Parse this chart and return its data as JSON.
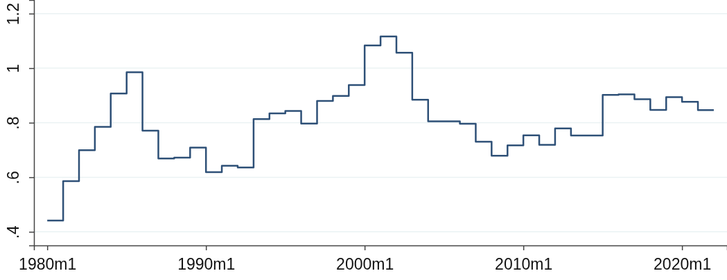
{
  "chart_data": {
    "type": "step",
    "x": [
      "1980-01",
      "1981-01",
      "1982-01",
      "1983-01",
      "1984-01",
      "1985-01",
      "1986-01",
      "1987-01",
      "1988-01",
      "1989-01",
      "1990-01",
      "1991-01",
      "1992-01",
      "1993-01",
      "1994-01",
      "1995-01",
      "1996-01",
      "1997-01",
      "1998-01",
      "1999-01",
      "2000-01",
      "2001-01",
      "2002-01",
      "2003-01",
      "2004-01",
      "2005-01",
      "2006-01",
      "2007-01",
      "2008-01",
      "2009-01",
      "2010-01",
      "2011-01",
      "2012-01",
      "2013-01",
      "2014-01",
      "2015-01",
      "2016-01",
      "2017-01",
      "2018-01",
      "2019-01",
      "2020-01",
      "2021-01",
      "2022-01"
    ],
    "series": [
      {
        "color": "#2e5077",
        "values": [
          0.441,
          0.586,
          0.699,
          0.785,
          0.907,
          0.985,
          0.771,
          0.669,
          0.672,
          0.709,
          0.619,
          0.642,
          0.636,
          0.813,
          0.834,
          0.843,
          0.797,
          0.88,
          0.898,
          0.938,
          1.083,
          1.116,
          1.057,
          0.884,
          0.805,
          0.805,
          0.796,
          0.73,
          0.679,
          0.717,
          0.754,
          0.719,
          0.779,
          0.753,
          0.753,
          0.902,
          0.904,
          0.886,
          0.847,
          0.894,
          0.877,
          0.846,
          0.846
        ]
      }
    ],
    "xlim": [
      "1979-03",
      "2022-11"
    ],
    "ylim": [
      0.35,
      1.25
    ],
    "xticks": [
      {
        "value": "1980-01",
        "label": "1980m1"
      },
      {
        "value": "1990-01",
        "label": "1990m1"
      },
      {
        "value": "2000-01",
        "label": "2000m1"
      },
      {
        "value": "2010-01",
        "label": "2010m1"
      },
      {
        "value": "2020-01",
        "label": "2020m1"
      }
    ],
    "yticks": [
      {
        "value": 0.4,
        "label": ".4"
      },
      {
        "value": 0.6,
        "label": ".6"
      },
      {
        "value": 0.8,
        "label": ".8"
      },
      {
        "value": 1,
        "label": "1"
      },
      {
        "value": 1.2,
        "label": "1.2"
      }
    ],
    "grid": "y",
    "line_style": "solid",
    "marker": "none"
  }
}
